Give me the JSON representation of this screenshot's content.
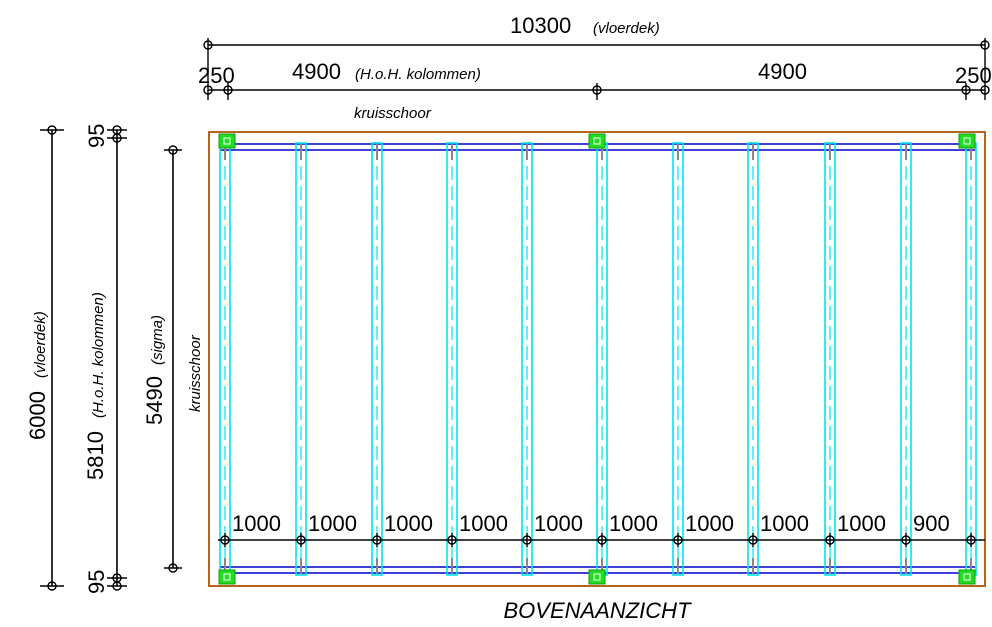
{
  "title": "BOVENAANZICHT",
  "top_dimensions": {
    "overall_value": "10300",
    "overall_note": "(vloerdek)",
    "edge_left": "250",
    "bay_left": "4900",
    "bay_left_note": "(H.o.H. kolommen)",
    "bay_right": "4900",
    "edge_right": "250",
    "brace_label": "kruisschoor"
  },
  "left_dimensions": {
    "overall_value": "6000",
    "overall_note": "(vloerdek)",
    "columns_value": "5810",
    "columns_note": "(H.o.H. kolommen)",
    "sigma_value": "5490",
    "sigma_note": "(sigma)",
    "edge_top": "95",
    "edge_bottom": "95",
    "brace_label": "kruisschoor"
  },
  "spacing_labels": [
    "1000",
    "1000",
    "1000",
    "1000",
    "1000",
    "1000",
    "1000",
    "1000",
    "1000",
    "900"
  ],
  "colors": {
    "deck_outline": "#b5651d",
    "beam": "#0000cc",
    "joist": "#00e5ee",
    "column": "#22dd22",
    "dimension": "#000000"
  }
}
